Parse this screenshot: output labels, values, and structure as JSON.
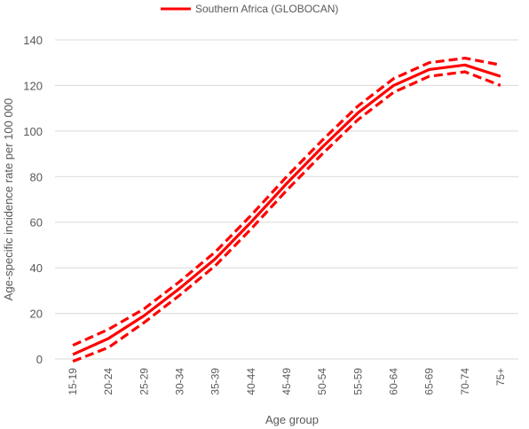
{
  "chart_data": {
    "type": "line",
    "title": "",
    "xlabel": "Age group",
    "ylabel": "Age-specific incidence rate per 100 000",
    "ylim": [
      0,
      140
    ],
    "yticks": [
      0,
      20,
      40,
      60,
      80,
      100,
      120,
      140
    ],
    "grid": true,
    "legend_position": "top-center",
    "categories": [
      "15-19",
      "20-24",
      "25-29",
      "30-34",
      "35-39",
      "40-44",
      "45-49",
      "50-54",
      "55-59",
      "60-64",
      "65-69",
      "70-74",
      "75+"
    ],
    "series": [
      {
        "name": "Southern Africa (GLOBOCAN)",
        "role": "estimate",
        "style": "solid",
        "color": "#ff0000",
        "values": [
          2,
          9,
          19,
          31,
          44,
          60,
          77,
          93,
          108,
          120,
          127,
          129,
          124
        ]
      },
      {
        "name": "",
        "role": "upper bound",
        "style": "dashed",
        "color": "#ff0000",
        "values": [
          6,
          13,
          22,
          34,
          47,
          63,
          80,
          96,
          111,
          123,
          130,
          132,
          129
        ]
      },
      {
        "name": "",
        "role": "lower bound",
        "style": "dashed",
        "color": "#ff0000",
        "values": [
          -1,
          5,
          16,
          28,
          41,
          57,
          74,
          90,
          105,
          117,
          124,
          126,
          120
        ]
      }
    ]
  }
}
